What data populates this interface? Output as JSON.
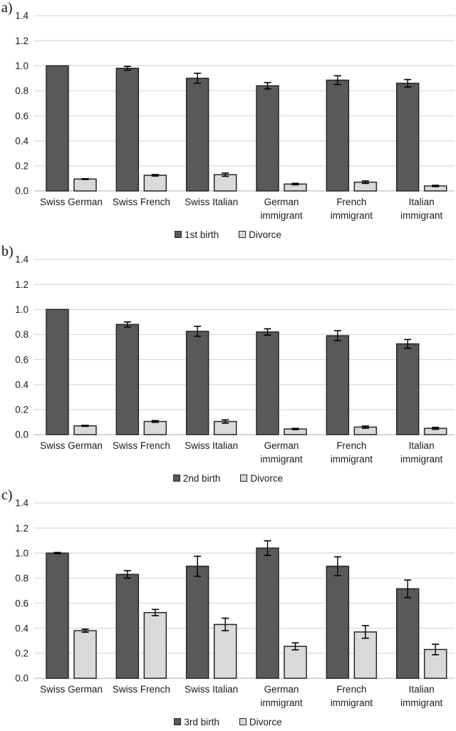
{
  "style": {
    "bar_border": "#262626",
    "dark_fill": "#595959",
    "light_fill": "#d9d9d9",
    "gridline": "#d9d9d9",
    "axis_line": "#bfbfbf",
    "error_color": "#000000",
    "text_color": "#1a1a1a",
    "background": "#ffffff"
  },
  "chart_data": [
    {
      "type": "bar",
      "panel_label": "a)",
      "title": "",
      "xlabel": "",
      "ylabel": "",
      "ylim": [
        0,
        1.4
      ],
      "yticks": [
        "0.0",
        "0.2",
        "0.4",
        "0.6",
        "0.8",
        "1.0",
        "1.2",
        "1.4"
      ],
      "grid": true,
      "legend_position": "bottom",
      "categories": [
        [
          "Swiss German"
        ],
        [
          "Swiss French"
        ],
        [
          "Swiss Italian"
        ],
        [
          "German",
          "immigrant"
        ],
        [
          "French",
          "immigrant"
        ],
        [
          "Italian",
          "immigrant"
        ]
      ],
      "series": [
        {
          "name": "1st birth",
          "color": "#595959",
          "values": [
            1.0,
            0.98,
            0.9,
            0.84,
            0.885,
            0.86
          ],
          "errors": [
            0,
            0.015,
            0.04,
            0.025,
            0.035,
            0.03
          ]
        },
        {
          "name": "Divorce",
          "color": "#d9d9d9",
          "values": [
            0.095,
            0.125,
            0.13,
            0.055,
            0.07,
            0.04
          ],
          "errors": [
            0.003,
            0.006,
            0.013,
            0.006,
            0.01,
            0.005
          ]
        }
      ]
    },
    {
      "type": "bar",
      "panel_label": "b)",
      "title": "",
      "xlabel": "",
      "ylabel": "",
      "ylim": [
        0,
        1.4
      ],
      "yticks": [
        "0.0",
        "0.2",
        "0.4",
        "0.6",
        "0.8",
        "1.0",
        "1.2",
        "1.4"
      ],
      "grid": true,
      "legend_position": "bottom",
      "categories": [
        [
          "Swiss German"
        ],
        [
          "Swiss French"
        ],
        [
          "Swiss Italian"
        ],
        [
          "German",
          "immigrant"
        ],
        [
          "French",
          "immigrant"
        ],
        [
          "Italian",
          "immigrant"
        ]
      ],
      "series": [
        {
          "name": "2nd birth",
          "color": "#595959",
          "values": [
            1.0,
            0.88,
            0.825,
            0.82,
            0.79,
            0.725
          ],
          "errors": [
            0,
            0.02,
            0.04,
            0.025,
            0.04,
            0.035
          ]
        },
        {
          "name": "Divorce",
          "color": "#d9d9d9",
          "values": [
            0.07,
            0.105,
            0.105,
            0.045,
            0.06,
            0.05
          ],
          "errors": [
            0.004,
            0.007,
            0.013,
            0.005,
            0.009,
            0.008
          ]
        }
      ]
    },
    {
      "type": "bar",
      "panel_label": "c)",
      "title": "",
      "xlabel": "",
      "ylabel": "",
      "ylim": [
        0,
        1.4
      ],
      "yticks": [
        "0.0",
        "0.2",
        "0.4",
        "0.6",
        "0.8",
        "1.0",
        "1.2",
        "1.4"
      ],
      "grid": true,
      "legend_position": "bottom",
      "categories": [
        [
          "Swiss German"
        ],
        [
          "Swiss French"
        ],
        [
          "Swiss Italian"
        ],
        [
          "German",
          "immigrant"
        ],
        [
          "French",
          "immigrant"
        ],
        [
          "Italian",
          "immigrant"
        ]
      ],
      "series": [
        {
          "name": "3rd birth",
          "color": "#595959",
          "values": [
            1.0,
            0.83,
            0.895,
            1.04,
            0.895,
            0.715
          ],
          "errors": [
            0.005,
            0.03,
            0.08,
            0.058,
            0.075,
            0.07
          ]
        },
        {
          "name": "Divorce",
          "color": "#d9d9d9",
          "values": [
            0.38,
            0.525,
            0.43,
            0.255,
            0.37,
            0.23
          ],
          "errors": [
            0.012,
            0.025,
            0.05,
            0.028,
            0.05,
            0.042
          ]
        }
      ]
    }
  ]
}
